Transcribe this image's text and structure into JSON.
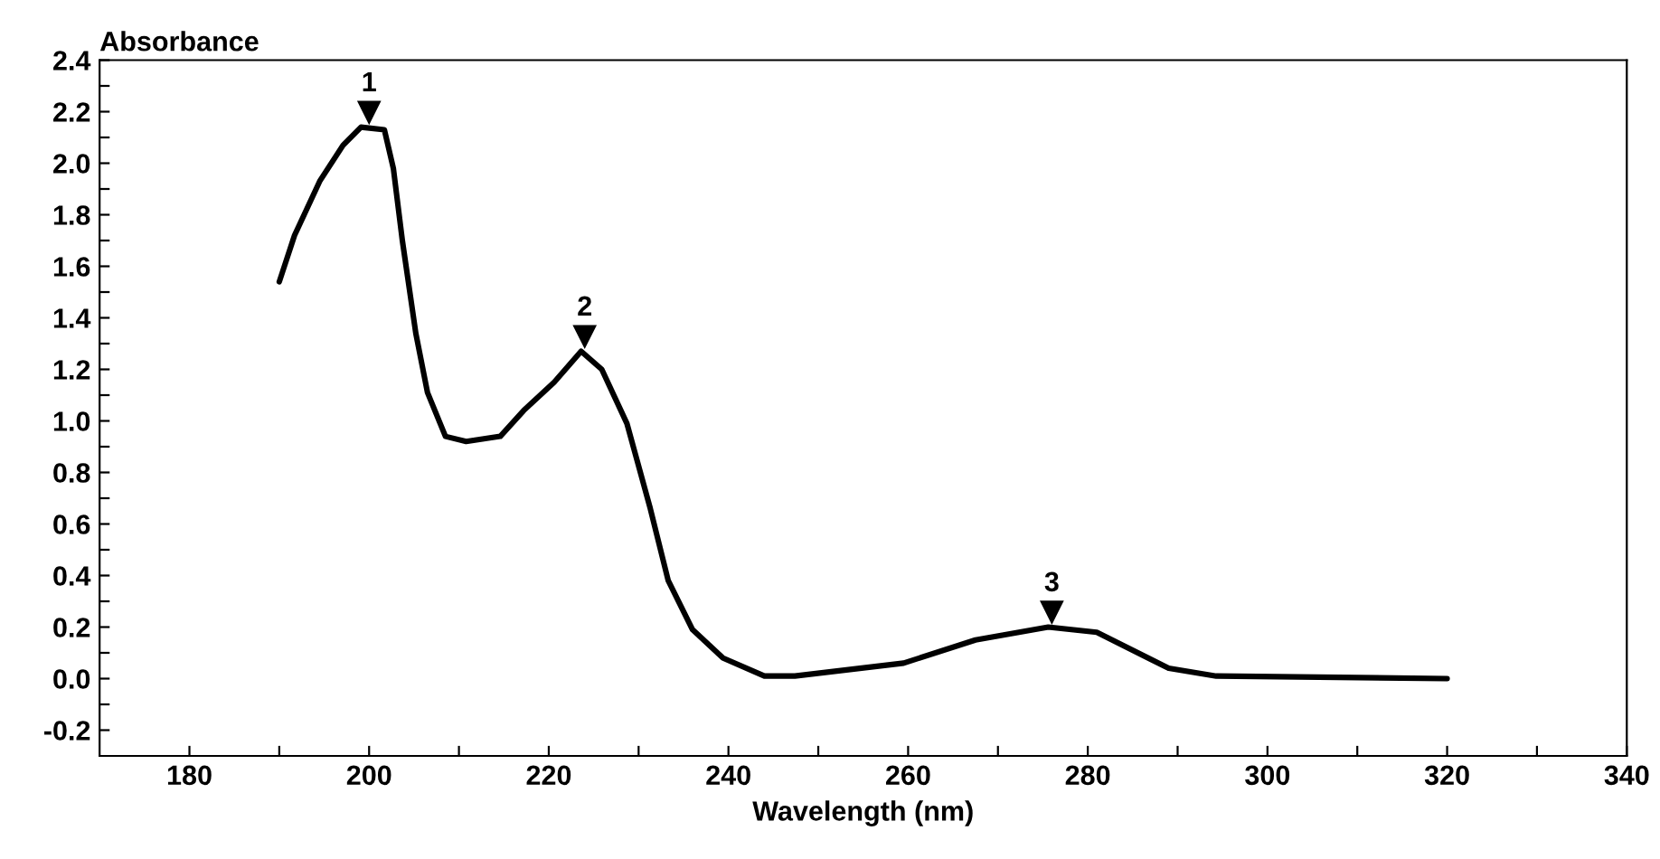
{
  "chart_data": {
    "type": "line",
    "xlabel": "Wavelength (nm)",
    "ylabel": "Absorbance",
    "series": [
      {
        "color": "#000000",
        "x": [
          190,
          191.7,
          194.5,
          197.1,
          199.1,
          201.7,
          202.7,
          203.7,
          205.2,
          206.5,
          208.5,
          210.8,
          214.6,
          217.2,
          220.6,
          223.6,
          225.9,
          228.7,
          231.3,
          233.3,
          236,
          239.4,
          244,
          247.4,
          259.5,
          267.5,
          275.6,
          281,
          289,
          294.3,
          320
        ],
        "values": [
          1.54,
          1.72,
          1.93,
          2.07,
          2.14,
          2.13,
          1.98,
          1.7,
          1.34,
          1.11,
          0.94,
          0.92,
          0.94,
          1.04,
          1.15,
          1.27,
          1.2,
          0.99,
          0.66,
          0.38,
          0.19,
          0.08,
          0.01,
          0.01,
          0.06,
          0.15,
          0.2,
          0.18,
          0.04,
          0.01,
          0.0
        ]
      }
    ],
    "annotations": [
      {
        "text": "1",
        "x": 200,
        "y": 2.14
      },
      {
        "text": "2",
        "x": 224,
        "y": 1.27
      },
      {
        "text": "3",
        "x": 276,
        "y": 0.2
      }
    ],
    "xlim": [
      170,
      340
    ],
    "ylim": [
      -0.3,
      2.4
    ],
    "xticks": [
      180,
      {
        "value": 190,
        "label": null
      },
      200,
      {
        "value": 210,
        "label": null
      },
      220,
      {
        "value": 230,
        "label": null
      },
      240,
      {
        "value": 250,
        "label": null
      },
      260,
      {
        "value": 270,
        "label": null
      },
      280,
      {
        "value": 290,
        "label": null
      },
      300,
      {
        "value": 310,
        "label": null
      },
      320,
      {
        "value": 330,
        "label": null
      },
      340
    ],
    "yticks": [
      -0.2,
      {
        "value": -0.1,
        "label": null
      },
      {
        "value": 0,
        "label": "0.0"
      },
      {
        "value": 0.1,
        "label": null
      },
      0.2,
      {
        "value": 0.3,
        "label": null
      },
      0.4,
      {
        "value": 0.5,
        "label": null
      },
      0.6,
      {
        "value": 0.7,
        "label": null
      },
      0.8,
      {
        "value": 0.9,
        "label": null
      },
      {
        "value": 1,
        "label": "1.0"
      },
      {
        "value": 1.1,
        "label": null
      },
      1.2,
      {
        "value": 1.3,
        "label": null
      },
      1.4,
      {
        "value": 1.5,
        "label": null
      },
      1.6,
      {
        "value": 1.7,
        "label": null
      },
      1.8,
      {
        "value": 1.9,
        "label": null
      },
      {
        "value": 2,
        "label": "2.0"
      },
      {
        "value": 2.1,
        "label": null
      },
      2.2,
      {
        "value": 2.3,
        "label": null
      },
      2.4
    ],
    "marker": "none",
    "line_style": "solid"
  }
}
